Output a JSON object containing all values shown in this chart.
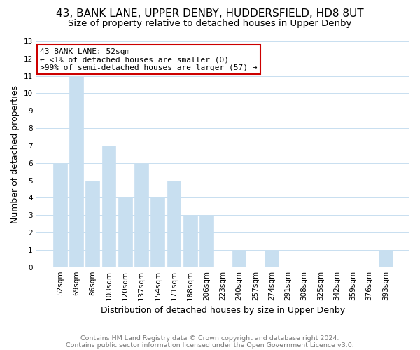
{
  "title": "43, BANK LANE, UPPER DENBY, HUDDERSFIELD, HD8 8UT",
  "subtitle": "Size of property relative to detached houses in Upper Denby",
  "xlabel": "Distribution of detached houses by size in Upper Denby",
  "ylabel": "Number of detached properties",
  "categories": [
    "52sqm",
    "69sqm",
    "86sqm",
    "103sqm",
    "120sqm",
    "137sqm",
    "154sqm",
    "171sqm",
    "188sqm",
    "206sqm",
    "223sqm",
    "240sqm",
    "257sqm",
    "274sqm",
    "291sqm",
    "308sqm",
    "325sqm",
    "342sqm",
    "359sqm",
    "376sqm",
    "393sqm"
  ],
  "values": [
    6,
    11,
    5,
    7,
    4,
    6,
    4,
    5,
    3,
    3,
    0,
    1,
    0,
    1,
    0,
    0,
    0,
    0,
    0,
    0,
    1
  ],
  "bar_color": "#c8dff0",
  "annotation_title": "43 BANK LANE: 52sqm",
  "annotation_line1": "← <1% of detached houses are smaller (0)",
  "annotation_line2": ">99% of semi-detached houses are larger (57) →",
  "annotation_box_edgecolor": "#cc0000",
  "ylim": [
    0,
    13
  ],
  "yticks": [
    0,
    1,
    2,
    3,
    4,
    5,
    6,
    7,
    8,
    9,
    10,
    11,
    12,
    13
  ],
  "footer1": "Contains HM Land Registry data © Crown copyright and database right 2024.",
  "footer2": "Contains public sector information licensed under the Open Government Licence v3.0.",
  "bg_color": "#ffffff",
  "grid_color": "#c8dff0",
  "title_fontsize": 11,
  "subtitle_fontsize": 9.5,
  "axis_label_fontsize": 9,
  "tick_fontsize": 7.5,
  "annotation_fontsize": 8,
  "footer_fontsize": 6.8
}
